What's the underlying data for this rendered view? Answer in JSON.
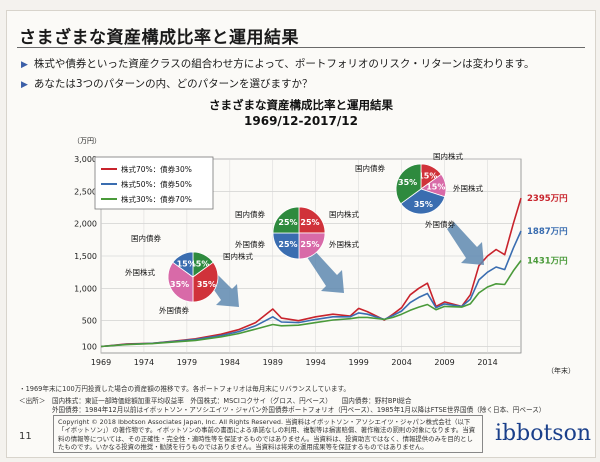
{
  "slide": {
    "title": "さまざまな資産構成比率と運用結果",
    "bullets": [
      "株式や債券といった資産クラスの組合わせ方によって、ポートフォリオのリスク・リターンは変わります。",
      "あなたは3つのパターンの内、どのパターンを選びますか？"
    ],
    "chart_title_1": "さまざまな資産構成比率と運用結果",
    "chart_title_2": "1969/12-2017/12",
    "unit_label": "（万円）",
    "x_unit_label": "（年末）",
    "footnote_1": "・1969年末に100万円投資した場合の資産額の推移です。各ポートフォリオは毎月末にリバランスしています。",
    "footnote_2": "＜出所＞　国内株式：東証一部時価総額加重平均収益率　外国株式：MSCIコクサイ（グロス、円ベース）　　国内債券：野村BPI総合",
    "footnote_3": "　　　　　外国債券：1984年12月以前はイボットソン・アソシエイツ・ジャパン外国債券ポートフォリオ（円ベース）、1985年1月以降はFTSE世界国債（除く日本、円ベース）",
    "copyright": "Copyright © 2018 Ibbotson Associates Japan, Inc. All Rights Reserved. 当資料はイボットソン・アソシエイツ・ジャパン株式会社（以下「イボットソン」）の著作物です。イボットソンの事前の書面による承諾なしの利用、複製等は損害賠償、著作権法の罰則の対象になります。当資料の情報等については、その正確性・完全性・適時性等を保証するものではありません。当資料は、投資助言ではなく、情報提供のみを目的としたものです。いかなる投資の推奨・勧誘を行うものではありません。当資料は将来の運用成果等を保証するものではありません。",
    "page_number": "11",
    "brand": "ibbotson"
  },
  "chart_data": {
    "type": "line",
    "title": "さまざまな資産構成比率と運用結果",
    "subtitle": "1969/12-2017/12",
    "ylabel": "（万円）",
    "xlabel": "（年末）",
    "ylim": [
      0,
      3000
    ],
    "xlim": [
      1969,
      2017.9
    ],
    "yticks": [
      100,
      500,
      1000,
      1500,
      2000,
      2500,
      3000
    ],
    "ytick_labels": [
      "100",
      "500",
      "1,000",
      "1,500",
      "2,000",
      "2,500",
      "3,000"
    ],
    "xticks": [
      1969,
      1974,
      1979,
      1984,
      1989,
      1994,
      1999,
      2004,
      2009,
      2014
    ],
    "grid": true,
    "legend": "top-left",
    "series": [
      {
        "name": "株式70%：債券30%",
        "color": "#c8232c",
        "end_label": "2395万円",
        "points": [
          [
            1969,
            100
          ],
          [
            1972,
            140
          ],
          [
            1975,
            150
          ],
          [
            1978,
            190
          ],
          [
            1980,
            220
          ],
          [
            1983,
            290
          ],
          [
            1985,
            360
          ],
          [
            1987,
            470
          ],
          [
            1989,
            680
          ],
          [
            1990,
            540
          ],
          [
            1992,
            500
          ],
          [
            1994,
            560
          ],
          [
            1996,
            600
          ],
          [
            1998,
            570
          ],
          [
            1999,
            690
          ],
          [
            2000,
            640
          ],
          [
            2002,
            510
          ],
          [
            2003,
            600
          ],
          [
            2004,
            700
          ],
          [
            2005,
            900
          ],
          [
            2006,
            1000
          ],
          [
            2007,
            1080
          ],
          [
            2008,
            720
          ],
          [
            2009,
            790
          ],
          [
            2011,
            720
          ],
          [
            2012,
            900
          ],
          [
            2013,
            1350
          ],
          [
            2014,
            1500
          ],
          [
            2015,
            1600
          ],
          [
            2016,
            1520
          ],
          [
            2017,
            2000
          ],
          [
            2017.9,
            2395
          ]
        ]
      },
      {
        "name": "株式50%：債券50%",
        "color": "#3a6db0",
        "end_label": "1887万円",
        "points": [
          [
            1969,
            100
          ],
          [
            1972,
            135
          ],
          [
            1975,
            150
          ],
          [
            1978,
            185
          ],
          [
            1980,
            210
          ],
          [
            1983,
            270
          ],
          [
            1985,
            330
          ],
          [
            1987,
            420
          ],
          [
            1989,
            560
          ],
          [
            1990,
            480
          ],
          [
            1992,
            470
          ],
          [
            1994,
            520
          ],
          [
            1996,
            560
          ],
          [
            1998,
            560
          ],
          [
            1999,
            620
          ],
          [
            2000,
            600
          ],
          [
            2002,
            520
          ],
          [
            2003,
            580
          ],
          [
            2004,
            650
          ],
          [
            2005,
            780
          ],
          [
            2006,
            860
          ],
          [
            2007,
            920
          ],
          [
            2008,
            700
          ],
          [
            2009,
            760
          ],
          [
            2011,
            720
          ],
          [
            2012,
            830
          ],
          [
            2013,
            1130
          ],
          [
            2014,
            1250
          ],
          [
            2015,
            1330
          ],
          [
            2016,
            1290
          ],
          [
            2017,
            1620
          ],
          [
            2017.9,
            1887
          ]
        ]
      },
      {
        "name": "株式30%：債券70%",
        "color": "#4a9a3a",
        "end_label": "1431万円",
        "points": [
          [
            1969,
            100
          ],
          [
            1972,
            130
          ],
          [
            1975,
            145
          ],
          [
            1978,
            175
          ],
          [
            1980,
            195
          ],
          [
            1983,
            250
          ],
          [
            1985,
            300
          ],
          [
            1987,
            370
          ],
          [
            1989,
            440
          ],
          [
            1990,
            420
          ],
          [
            1992,
            430
          ],
          [
            1994,
            470
          ],
          [
            1996,
            510
          ],
          [
            1998,
            530
          ],
          [
            1999,
            550
          ],
          [
            2000,
            550
          ],
          [
            2002,
            520
          ],
          [
            2003,
            550
          ],
          [
            2004,
            600
          ],
          [
            2005,
            660
          ],
          [
            2006,
            710
          ],
          [
            2007,
            750
          ],
          [
            2008,
            670
          ],
          [
            2009,
            720
          ],
          [
            2011,
            710
          ],
          [
            2012,
            760
          ],
          [
            2013,
            930
          ],
          [
            2014,
            1020
          ],
          [
            2015,
            1070
          ],
          [
            2016,
            1060
          ],
          [
            2017,
            1270
          ],
          [
            2017.9,
            1431
          ]
        ]
      }
    ],
    "pies": [
      {
        "slices": [
          {
            "label": "国内債券",
            "pct": 15,
            "color": "#2e8a3e"
          },
          {
            "label": "国内株式",
            "pct": 35,
            "color": "#d0323a"
          },
          {
            "label": "外国株式",
            "pct": 35,
            "color": "#d86aa8"
          },
          {
            "label": "外国債券",
            "pct": 15,
            "color": "#3a6db0"
          }
        ]
      },
      {
        "slices": [
          {
            "label": "国内株式",
            "pct": 25,
            "color": "#d0323a"
          },
          {
            "label": "外国株式",
            "pct": 25,
            "color": "#d86aa8"
          },
          {
            "label": "外国債券",
            "pct": 25,
            "color": "#3a6db0"
          },
          {
            "label": "国内債券",
            "pct": 25,
            "color": "#2e8a3e"
          }
        ]
      },
      {
        "slices": [
          {
            "label": "国内株式",
            "pct": 15,
            "color": "#d0323a"
          },
          {
            "label": "外国株式",
            "pct": 15,
            "color": "#d86aa8"
          },
          {
            "label": "外国債券",
            "pct": 35,
            "color": "#3a6db0"
          },
          {
            "label": "国内債券",
            "pct": 35,
            "color": "#2e8a3e"
          }
        ]
      }
    ]
  }
}
